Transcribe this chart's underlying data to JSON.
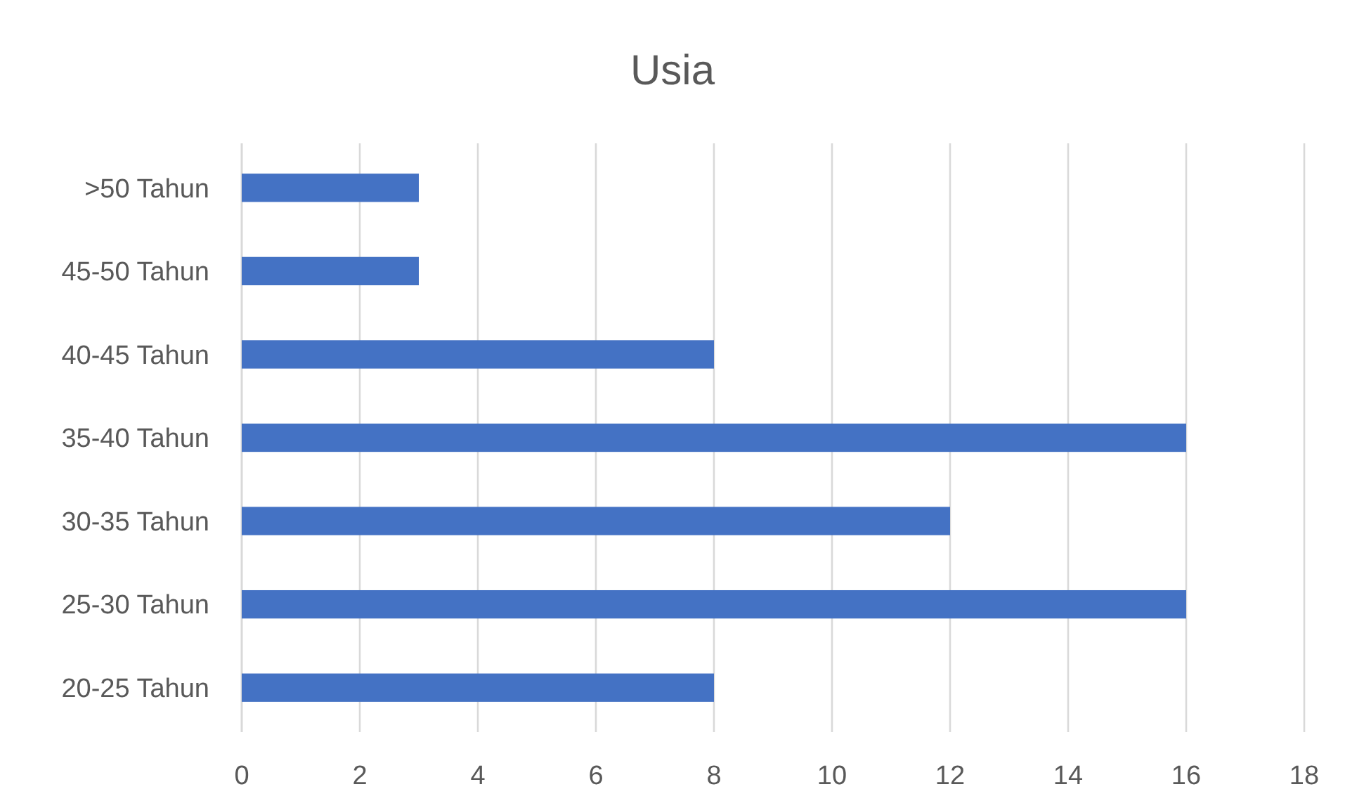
{
  "chart_data": {
    "type": "bar",
    "orientation": "horizontal",
    "title": "Usia",
    "categories": [
      ">50 Tahun",
      "45-50 Tahun",
      "40-45 Tahun",
      "35-40 Tahun",
      "30-35 Tahun",
      "25-30 Tahun",
      "20-25 Tahun"
    ],
    "values": [
      3,
      3,
      8,
      16,
      12,
      16,
      8
    ],
    "color": "#4472c4",
    "xlim": [
      0,
      18
    ],
    "xticks": [
      0,
      2,
      4,
      6,
      8,
      10,
      12,
      14,
      16,
      18
    ],
    "grid": "x"
  }
}
